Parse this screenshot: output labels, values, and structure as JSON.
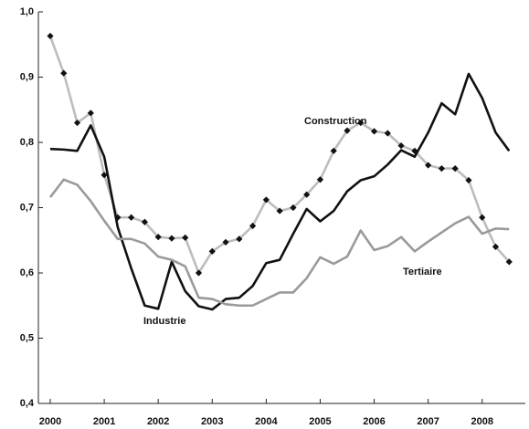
{
  "chart_data": {
    "type": "line",
    "x": [
      2000,
      2000.25,
      2000.5,
      2000.75,
      2001,
      2001.25,
      2001.5,
      2001.75,
      2002,
      2002.25,
      2002.5,
      2002.75,
      2003,
      2003.25,
      2003.5,
      2003.75,
      2004,
      2004.25,
      2004.5,
      2004.75,
      2005,
      2005.25,
      2005.5,
      2005.75,
      2006,
      2006.25,
      2006.5,
      2006.75,
      2007,
      2007.25,
      2007.5,
      2007.75,
      2008,
      2008.25,
      2008.5
    ],
    "series": [
      {
        "name": "Construction",
        "color": "#bdbdbd",
        "marker": "diamond",
        "values": [
          0.963,
          0.906,
          0.83,
          0.845,
          0.75,
          0.685,
          0.685,
          0.678,
          0.655,
          0.653,
          0.654,
          0.6,
          0.633,
          0.647,
          0.652,
          0.672,
          0.712,
          0.695,
          0.7,
          0.72,
          0.743,
          0.787,
          0.818,
          0.83,
          0.817,
          0.814,
          0.795,
          0.787,
          0.765,
          0.76,
          0.76,
          0.742,
          0.685,
          0.64,
          0.617
        ]
      },
      {
        "name": "Industrie",
        "color": "#111111",
        "values": [
          0.79,
          0.789,
          0.787,
          0.826,
          0.778,
          0.67,
          0.607,
          0.55,
          0.545,
          0.617,
          0.572,
          0.549,
          0.544,
          0.56,
          0.562,
          0.58,
          0.615,
          0.62,
          0.66,
          0.698,
          0.679,
          0.695,
          0.725,
          0.742,
          0.748,
          0.766,
          0.788,
          0.778,
          0.815,
          0.86,
          0.843,
          0.905,
          0.868,
          0.815,
          0.787
        ]
      },
      {
        "name": "Tertiaire",
        "color": "#9a9a9a",
        "values": [
          0.716,
          0.743,
          0.735,
          0.71,
          0.68,
          0.652,
          0.652,
          0.645,
          0.625,
          0.62,
          0.61,
          0.562,
          0.56,
          0.552,
          0.55,
          0.55,
          0.56,
          0.57,
          0.57,
          0.592,
          0.624,
          0.614,
          0.625,
          0.665,
          0.635,
          0.641,
          0.655,
          0.633,
          0.648,
          0.662,
          0.676,
          0.686,
          0.66,
          0.668,
          0.667
        ]
      }
    ],
    "xlim": [
      1999.78,
      2008.8
    ],
    "xticks": [
      2000,
      2001,
      2002,
      2003,
      2004,
      2005,
      2006,
      2007,
      2008
    ],
    "ylim": [
      0.4,
      1.0
    ],
    "yticks": [
      {
        "value": 0.4,
        "label": "0,4"
      },
      {
        "value": 0.5,
        "label": "0,5"
      },
      {
        "value": 0.6,
        "label": "0,6"
      },
      {
        "value": 0.7,
        "label": "0,7"
      },
      {
        "value": 0.8,
        "label": "0,8"
      },
      {
        "value": 0.9,
        "label": "0,9"
      },
      {
        "value": 1.0,
        "label": "1,0"
      }
    ],
    "grid": false
  }
}
